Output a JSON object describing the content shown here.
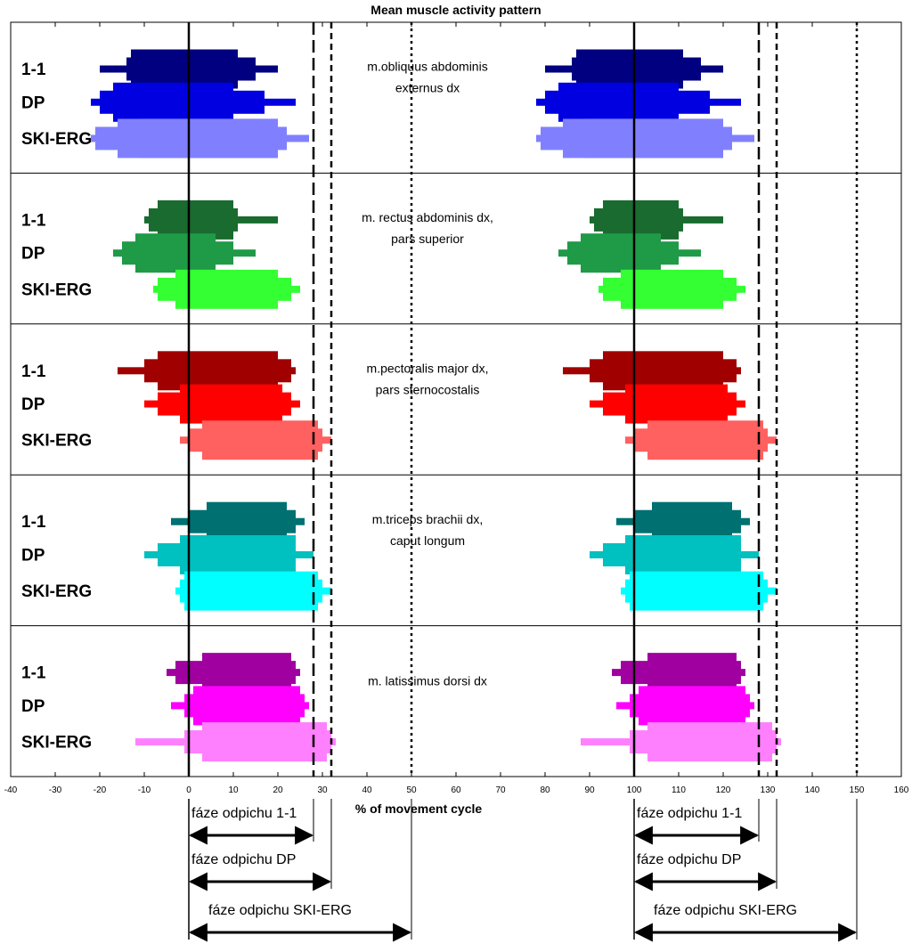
{
  "chart_data": {
    "type": "bar",
    "title": "Mean muscle activity pattern",
    "xlabel": "% of movement cycle",
    "xlim": [
      -40,
      160
    ],
    "xticks": [
      -40,
      -30,
      -20,
      -10,
      0,
      10,
      20,
      30,
      40,
      50,
      60,
      70,
      80,
      90,
      100,
      110,
      120,
      130,
      140,
      150,
      160
    ],
    "row_labels": [
      "1-1",
      "DP",
      "SKI-ERG"
    ],
    "reference_lines": [
      {
        "x": 0,
        "style": "solid"
      },
      {
        "x": 28,
        "style": "dashed"
      },
      {
        "x": 32,
        "style": "short-dashed"
      },
      {
        "x": 50,
        "style": "dotted"
      },
      {
        "x": 100,
        "style": "solid"
      },
      {
        "x": 128,
        "style": "dashed"
      },
      {
        "x": 132,
        "style": "short-dashed"
      },
      {
        "x": 150,
        "style": "dotted"
      }
    ],
    "muscles": [
      {
        "label_lines": [
          "m.obliquus abdominis",
          "externus dx"
        ],
        "series": [
          {
            "name": "1-1",
            "color": "#000080",
            "levels": [
              [
                -20,
                20
              ],
              [
                -14,
                15
              ],
              [
                -13,
                11
              ]
            ]
          },
          {
            "name": "DP",
            "color": "#0000e0",
            "levels": [
              [
                -22,
                24
              ],
              [
                -20,
                17
              ],
              [
                -17,
                10
              ]
            ]
          },
          {
            "name": "SKI-ERG",
            "color": "#8080ff",
            "levels": [
              [
                -22,
                27
              ],
              [
                -21,
                22
              ],
              [
                -16,
                20
              ],
              [
                -11,
                20
              ]
            ]
          }
        ]
      },
      {
        "label_lines": [
          "m. rectus abdominis dx,",
          "pars superior"
        ],
        "series": [
          {
            "name": "1-1",
            "color": "#1a6b2f",
            "levels": [
              [
                -10,
                20
              ],
              [
                -9,
                11
              ],
              [
                -7,
                10
              ]
            ]
          },
          {
            "name": "DP",
            "color": "#1f9a47",
            "levels": [
              [
                -17,
                15
              ],
              [
                -15,
                10
              ],
              [
                -12,
                6
              ]
            ]
          },
          {
            "name": "SKI-ERG",
            "color": "#33ff33",
            "levels": [
              [
                -8,
                25
              ],
              [
                -7,
                23
              ],
              [
                -3,
                20
              ]
            ]
          }
        ]
      },
      {
        "label_lines": [
          "m.pectoralis major dx,",
          "pars sternocostalis"
        ],
        "series": [
          {
            "name": "1-1",
            "color": "#a00000",
            "levels": [
              [
                -16,
                24
              ],
              [
                -10,
                23
              ],
              [
                -7,
                20
              ]
            ]
          },
          {
            "name": "DP",
            "color": "#ff0000",
            "levels": [
              [
                -10,
                25
              ],
              [
                -7,
                23
              ],
              [
                -2,
                21
              ]
            ]
          },
          {
            "name": "SKI-ERG",
            "color": "#ff6060",
            "levels": [
              [
                -2,
                32
              ],
              [
                0,
                30
              ],
              [
                3,
                29
              ]
            ]
          }
        ]
      },
      {
        "label_lines": [
          "m.triceps brachii dx,",
          "caput longum"
        ],
        "series": [
          {
            "name": "1-1",
            "color": "#007070",
            "levels": [
              [
                -4,
                26
              ],
              [
                0,
                24
              ],
              [
                4,
                22
              ]
            ]
          },
          {
            "name": "DP",
            "color": "#00c0c0",
            "levels": [
              [
                -10,
                28
              ],
              [
                -7,
                24
              ],
              [
                -2,
                24
              ]
            ]
          },
          {
            "name": "SKI-ERG",
            "color": "#00ffff",
            "levels": [
              [
                -3,
                32
              ],
              [
                -2,
                30
              ],
              [
                -1,
                29
              ]
            ]
          }
        ]
      },
      {
        "label_lines": [
          "m. latissimus dorsi dx"
        ],
        "series": [
          {
            "name": "1-1",
            "color": "#a000a0",
            "levels": [
              [
                -5,
                25
              ],
              [
                -3,
                24
              ],
              [
                3,
                23
              ]
            ]
          },
          {
            "name": "DP",
            "color": "#ff00ff",
            "levels": [
              [
                -4,
                27
              ],
              [
                -1,
                26
              ],
              [
                1,
                25
              ]
            ]
          },
          {
            "name": "SKI-ERG",
            "color": "#ff80ff",
            "levels": [
              [
                -12,
                33
              ],
              [
                -1,
                32
              ],
              [
                3,
                31
              ]
            ]
          }
        ]
      }
    ],
    "phase_arrows": [
      {
        "label": "fáze odpichu 1-1",
        "from": 0,
        "to": 28
      },
      {
        "label": "fáze odpichu  DP",
        "from": 0,
        "to": 32
      },
      {
        "label": "fáze odpichu SKI-ERG",
        "from": 0,
        "to": 50
      },
      {
        "label": "fáze odpichu 1-1",
        "from": 100,
        "to": 128
      },
      {
        "label": "fáze odpichu  DP",
        "from": 100,
        "to": 132
      },
      {
        "label": "fáze odpichu SKI-ERG",
        "from": 100,
        "to": 150
      }
    ],
    "grid": false,
    "legend": "none"
  }
}
